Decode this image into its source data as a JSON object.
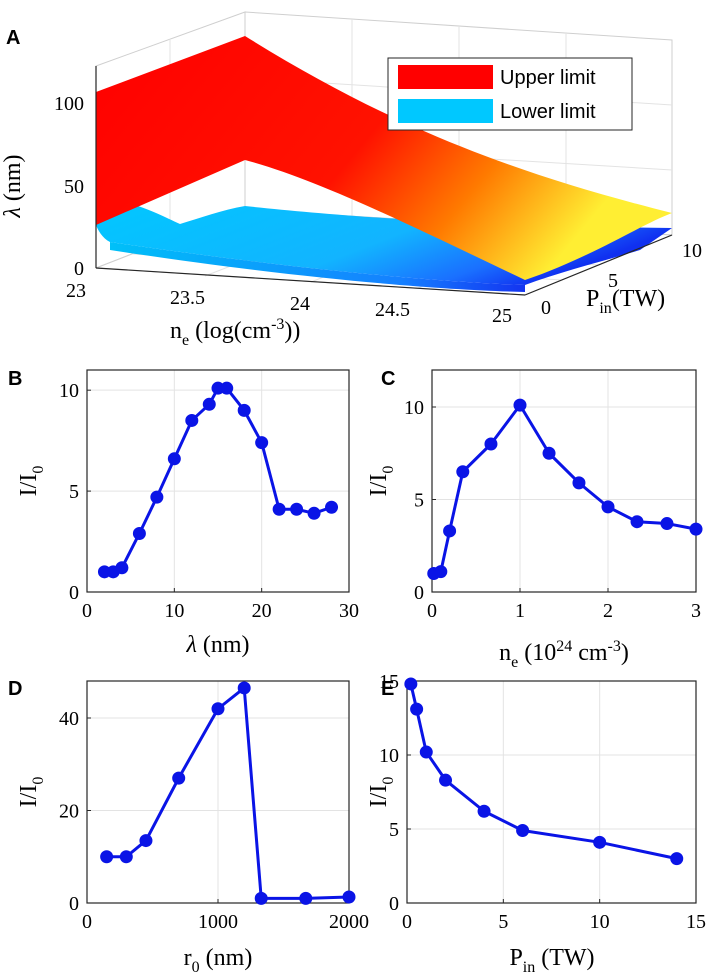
{
  "figure": {
    "panel_letters": [
      "A",
      "B",
      "C",
      "D",
      "E"
    ]
  },
  "chart_data": [
    {
      "id": "A",
      "type": "surface3d",
      "zlabel_sym": "λ",
      "zlabel_unit": " (nm)",
      "xlabel_main": "n",
      "xlabel_sub": "e",
      "xlabel_rest": " (log(cm",
      "xlabel_sup": "-3",
      "xlabel_end": "))",
      "ylabel_main": "P",
      "ylabel_sub": "in",
      "ylabel_rest": "(TW)",
      "xticks": [
        "23",
        "23.5",
        "24",
        "24.5",
        "25"
      ],
      "yticks": [
        "0",
        "5",
        "10"
      ],
      "zticks": [
        "0",
        "50",
        "100"
      ],
      "xlim": [
        23,
        25
      ],
      "ylim": [
        0,
        10
      ],
      "zlim": [
        0,
        125
      ],
      "legend": [
        "Upper limit",
        "Lower limit"
      ],
      "colors": {
        "upper_hot": "#ff0000",
        "upper_warm": "#ff7a00",
        "upper_light": "#ffee33",
        "lower_top": "#00c8ff",
        "lower_mid": "#22aaff",
        "lower_deep": "#1030f0"
      }
    },
    {
      "id": "B",
      "type": "line",
      "xlabel_sym": "λ",
      "xlabel_unit": " (nm)",
      "ylabel": "I/I",
      "ylabel_sub": "0",
      "xlim": [
        0,
        30
      ],
      "ylim": [
        0,
        11
      ],
      "xticks": [
        "0",
        "10",
        "20",
        "30"
      ],
      "yticks": [
        "0",
        "5",
        "10"
      ],
      "x": [
        2,
        3,
        4,
        6,
        8,
        10,
        12,
        14,
        15,
        16,
        18,
        20,
        22,
        24,
        26,
        28
      ],
      "y": [
        1.0,
        1.0,
        1.2,
        2.9,
        4.7,
        6.6,
        8.5,
        9.3,
        10.1,
        10.1,
        9.0,
        7.4,
        4.1,
        4.1,
        3.9,
        4.2
      ]
    },
    {
      "id": "C",
      "type": "line",
      "xlabel_main": "n",
      "xlabel_sub": "e",
      "xlabel_rest": " (10",
      "xlabel_sup": "24",
      "xlabel_mid": " cm",
      "xlabel_sup2": "-3",
      "xlabel_end": ")",
      "ylabel": "I/I",
      "ylabel_sub": "0",
      "xlim": [
        0,
        3
      ],
      "ylim": [
        0,
        12
      ],
      "xticks": [
        "0",
        "1",
        "2",
        "3"
      ],
      "yticks": [
        "0",
        "5",
        "10"
      ],
      "x": [
        0.02,
        0.1,
        0.2,
        0.35,
        0.67,
        1.0,
        1.33,
        1.67,
        2.0,
        2.33,
        2.67,
        3.0
      ],
      "y": [
        1.0,
        1.1,
        3.3,
        6.5,
        8.0,
        10.1,
        7.5,
        5.9,
        4.6,
        3.8,
        3.7,
        3.4
      ]
    },
    {
      "id": "D",
      "type": "line",
      "xlabel_main": "r",
      "xlabel_sub": "0",
      "xlabel_rest": " (nm)",
      "ylabel": "I/I",
      "ylabel_sub": "0",
      "xlim": [
        0,
        2000
      ],
      "ylim": [
        0,
        48
      ],
      "xticks": [
        "0",
        "1000",
        "2000"
      ],
      "yticks": [
        "0",
        "20",
        "40"
      ],
      "x": [
        150,
        300,
        450,
        700,
        1000,
        1200,
        1330,
        1670,
        2000
      ],
      "y": [
        10,
        10,
        13.5,
        27,
        42,
        46.5,
        1,
        1,
        1.3
      ]
    },
    {
      "id": "E",
      "type": "line",
      "xlabel_main": "P",
      "xlabel_sub": "in",
      "xlabel_rest": " (TW)",
      "ylabel": "I/I",
      "ylabel_sub": "0",
      "xlim": [
        0,
        15
      ],
      "ylim": [
        0,
        15
      ],
      "xticks": [
        "0",
        "5",
        "10",
        "15"
      ],
      "yticks": [
        "0",
        "5",
        "10",
        "15"
      ],
      "x": [
        0.2,
        0.5,
        1,
        2,
        4,
        6,
        10,
        14
      ],
      "y": [
        14.8,
        13.1,
        10.2,
        8.3,
        6.2,
        4.9,
        4.1,
        3.0
      ]
    }
  ]
}
